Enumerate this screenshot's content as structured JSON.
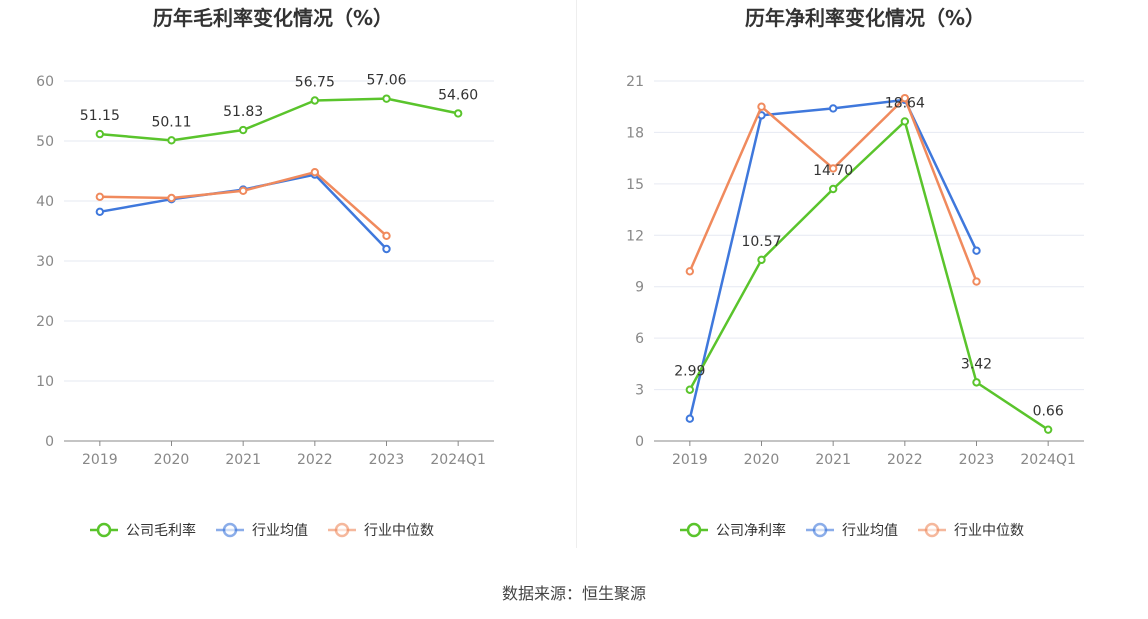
{
  "chart_data": [
    {
      "type": "line",
      "title": "历年毛利率变化情况（%）",
      "categories": [
        "2019",
        "2020",
        "2021",
        "2022",
        "2023",
        "2024Q1"
      ],
      "ylim": [
        0,
        60
      ],
      "yticks": [
        0,
        10,
        20,
        30,
        40,
        50,
        60
      ],
      "grid": true,
      "legend_position": "bottom",
      "series": [
        {
          "name": "公司毛利率",
          "color": "#5ac42c",
          "values": [
            51.15,
            50.11,
            51.83,
            56.75,
            57.06,
            54.6
          ],
          "labels": [
            "51.15",
            "50.11",
            "51.83",
            "56.75",
            "57.06",
            "54.60"
          ]
        },
        {
          "name": "行业均值",
          "color": "#3f78dc",
          "values": [
            38.2,
            40.3,
            41.9,
            44.4,
            32.0,
            null
          ]
        },
        {
          "name": "行业中位数",
          "color": "#f08a5d",
          "values": [
            40.7,
            40.5,
            41.7,
            44.8,
            34.2,
            null
          ]
        }
      ]
    },
    {
      "type": "line",
      "title": "历年净利率变化情况（%）",
      "categories": [
        "2019",
        "2020",
        "2021",
        "2022",
        "2023",
        "2024Q1"
      ],
      "ylim": [
        0,
        21
      ],
      "yticks": [
        0,
        3,
        6,
        9,
        12,
        15,
        18,
        21
      ],
      "grid": true,
      "legend_position": "bottom",
      "series": [
        {
          "name": "公司净利率",
          "color": "#5ac42c",
          "values": [
            2.99,
            10.57,
            14.7,
            18.64,
            3.42,
            0.66
          ],
          "labels": [
            "2.99",
            "10.57",
            "14.70",
            "18.64",
            "3.42",
            "0.66"
          ]
        },
        {
          "name": "行业均值",
          "color": "#3f78dc",
          "values": [
            1.3,
            19.0,
            19.4,
            19.9,
            11.1,
            null
          ]
        },
        {
          "name": "行业中位数",
          "color": "#f08a5d",
          "values": [
            9.9,
            19.5,
            15.9,
            20.0,
            9.3,
            null
          ]
        }
      ]
    }
  ],
  "source": "数据来源：恒生聚源"
}
